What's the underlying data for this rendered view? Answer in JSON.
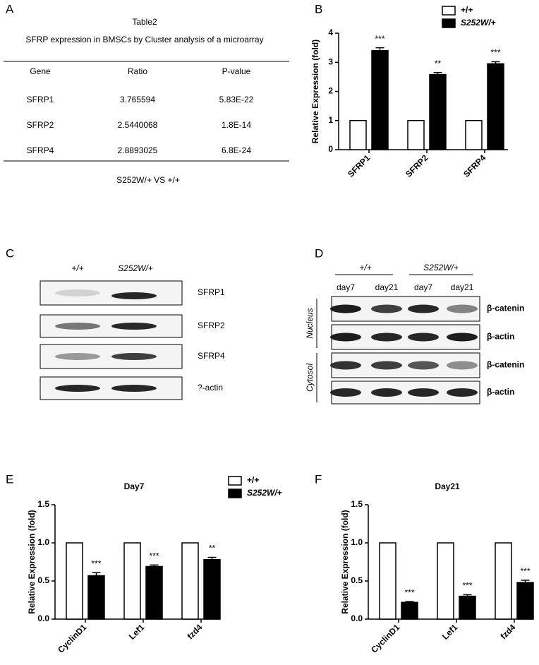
{
  "panel_labels": [
    "A",
    "B",
    "C",
    "D",
    "E",
    "F"
  ],
  "table": {
    "title": "Table2",
    "caption": "SFRP expression in BMSCs by Cluster analysis of a microarray",
    "header": [
      "Gene",
      "Ratio",
      "P-value"
    ],
    "rows": [
      [
        "SFRP1",
        "3.765594",
        "5.83E-22"
      ],
      [
        "SFRP2",
        "2.5440068",
        "1.8E-14"
      ],
      [
        "SFRP4",
        "2.8893025",
        "6.8E-24"
      ]
    ],
    "footer": "S252W/+ VS +/+"
  },
  "blot_c": {
    "columns": [
      "+/+",
      "S252W/+"
    ],
    "rows": [
      "SFRP1",
      "SFRP2",
      "SFRP4",
      "?-actin"
    ]
  },
  "blot_d": {
    "groups": [
      "+/+",
      "S252W/+"
    ],
    "columns": [
      "day7",
      "day21",
      "day7",
      "day21"
    ],
    "compartments": [
      "Nucleus",
      "Cytosol"
    ],
    "rows": [
      "β-catenin",
      "β-actin",
      "β-catenin",
      "β-actin"
    ]
  },
  "chart_data": [
    {
      "type": "bar",
      "ylabel": "Relative Expression (fold)",
      "categories": [
        "SFRP1",
        "SFRP2",
        "SFRP4"
      ],
      "series": [
        {
          "name": "+/+",
          "color": "#ffffff",
          "values": [
            1,
            1,
            1
          ]
        },
        {
          "name": "S252W/+",
          "color": "#000000",
          "values": [
            3.4,
            2.58,
            2.95
          ],
          "errors": [
            0.1,
            0.07,
            0.07
          ]
        }
      ],
      "annotations": [
        "***",
        "**",
        "***"
      ],
      "ylim": [
        0,
        4
      ],
      "yticks": [
        0,
        1,
        2,
        3,
        4
      ],
      "legend": true
    },
    {
      "type": "bar",
      "title": "Day7",
      "ylabel": "Relative Expression (fold)",
      "categories": [
        "CyclinD1",
        "Lef1",
        "fzd4"
      ],
      "series": [
        {
          "name": "+/+",
          "color": "#ffffff",
          "values": [
            1,
            1,
            1
          ]
        },
        {
          "name": "S252W/+",
          "color": "#000000",
          "values": [
            0.57,
            0.69,
            0.78
          ],
          "errors": [
            0.04,
            0.02,
            0.03
          ]
        }
      ],
      "annotations": [
        "***",
        "***",
        "**"
      ],
      "ylim": [
        0,
        1.5
      ],
      "yticks": [
        {
          "value": 0,
          "label": "0.0"
        },
        {
          "value": 0.5,
          "label": "0.5"
        },
        {
          "value": 1,
          "label": "1.0"
        },
        {
          "value": 1.5,
          "label": "1.5"
        }
      ],
      "legend": true
    },
    {
      "type": "bar",
      "title": "Day21",
      "ylabel": "Relative Expression (fold)",
      "categories": [
        "CyclinD1",
        "Lef1",
        "fzd4"
      ],
      "series": [
        {
          "color": "#ffffff",
          "values": [
            1,
            1,
            1
          ]
        },
        {
          "color": "#000000",
          "values": [
            0.22,
            0.3,
            0.48
          ],
          "errors": [
            0.01,
            0.02,
            0.03
          ]
        }
      ],
      "annotations": [
        "***",
        "***",
        "***"
      ],
      "ylim": [
        0,
        1.5
      ],
      "yticks": [
        {
          "value": 0,
          "label": "0.0"
        },
        {
          "value": 0.5,
          "label": "0.5"
        },
        {
          "value": 1,
          "label": "1.0"
        },
        {
          "value": 1.5,
          "label": "1.5"
        }
      ],
      "legend": false
    }
  ]
}
